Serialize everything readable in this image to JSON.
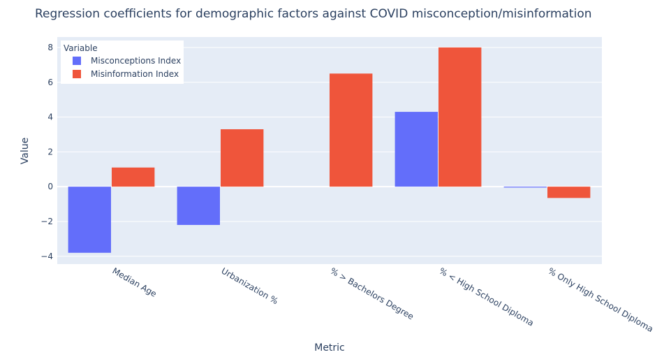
{
  "chart_data": {
    "type": "bar",
    "title": "Regression coefficients for demographic factors against COVID misconception/misinformation",
    "xlabel": "Metric",
    "ylabel": "Value",
    "categories": [
      "Median Age",
      "Urbanization %",
      "% > Bachelors Degree",
      "% < High School Diploma",
      "% Only High School Diploma"
    ],
    "series": [
      {
        "name": "Misconceptions Index",
        "color": "#636efa",
        "values": [
          -3.8,
          -2.2,
          0.0,
          4.3,
          -0.05
        ]
      },
      {
        "name": "Misinformation Index",
        "color": "#ef553b",
        "values": [
          1.1,
          3.3,
          6.5,
          8.0,
          -0.65
        ]
      }
    ],
    "ylim": [
      -4.45,
      8.6
    ],
    "yticks": [
      -4,
      -2,
      0,
      2,
      4,
      6,
      8
    ],
    "ytick_labels": [
      "−4",
      "−2",
      "0",
      "2",
      "4",
      "6",
      "8"
    ],
    "legend": {
      "title": "Variable",
      "placement": "top-left"
    },
    "grid": true,
    "background": "#e5ecf6"
  }
}
